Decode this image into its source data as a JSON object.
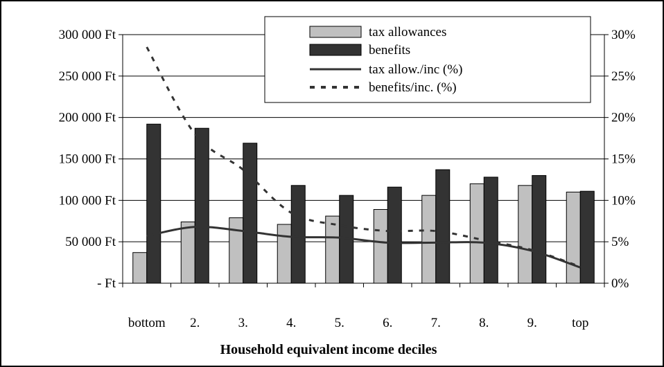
{
  "chart_data": {
    "type": "bar",
    "title": "",
    "xlabel": "Household equivalent income deciles",
    "categories": [
      "bottom",
      "2.",
      "3.",
      "4.",
      "5.",
      "6.",
      "7.",
      "8.",
      "9.",
      "top"
    ],
    "y_left": {
      "ylim": [
        0,
        300000
      ],
      "ticks": [
        0,
        50000,
        100000,
        150000,
        200000,
        250000,
        300000
      ],
      "tick_labels": [
        "- Ft",
        "50 000 Ft",
        "100 000 Ft",
        "150 000 Ft",
        "200 000 Ft",
        "250 000 Ft",
        "300 000 Ft"
      ]
    },
    "y_right": {
      "ylim": [
        0,
        30
      ],
      "ticks": [
        0,
        5,
        10,
        15,
        20,
        25,
        30
      ],
      "tick_labels": [
        "0%",
        "5%",
        "10%",
        "15%",
        "20%",
        "25%",
        "30%"
      ]
    },
    "series": [
      {
        "name": "tax allowances",
        "kind": "bar",
        "axis": "left",
        "color": "#c0c0c0",
        "values": [
          37000,
          74000,
          79000,
          71000,
          81000,
          89000,
          106000,
          120000,
          118000,
          110000
        ]
      },
      {
        "name": "benefits",
        "kind": "bar",
        "axis": "left",
        "color": "#333333",
        "values": [
          192000,
          187000,
          169000,
          118000,
          106000,
          116000,
          137000,
          128000,
          130000,
          111000
        ]
      },
      {
        "name": "tax allow./inc (%)",
        "kind": "line",
        "axis": "right",
        "color": "#333333",
        "dash": "solid",
        "values": [
          5.7,
          6.8,
          6.3,
          5.6,
          5.5,
          4.9,
          4.9,
          4.9,
          3.9,
          1.9
        ]
      },
      {
        "name": "benefits/inc. (%)",
        "kind": "line",
        "axis": "right",
        "color": "#333333",
        "dash": "dashed",
        "values": [
          28.5,
          18.0,
          13.7,
          8.5,
          7.0,
          6.3,
          6.3,
          5.2,
          4.0,
          2.0
        ]
      }
    ],
    "legend": "top-center",
    "grid": "horizontal"
  }
}
